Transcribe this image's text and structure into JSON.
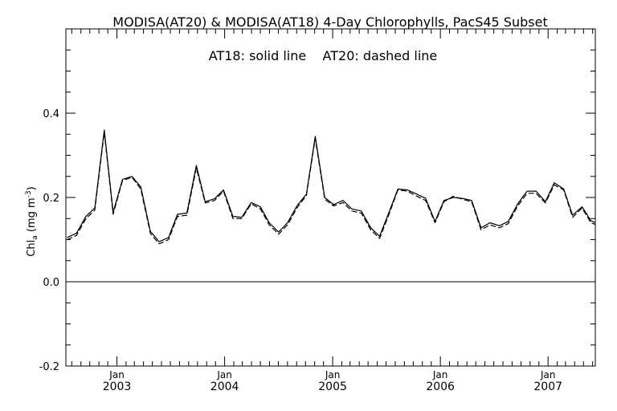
{
  "chart_data": {
    "type": "line",
    "title": "MODISA(AT20) & MODISA(AT18) 4-Day Chlorophylls, PacS45 Subset",
    "annotation": "AT18: solid line    AT20: dashed line",
    "ylabel_main": "Chl",
    "ylabel_sub": "a",
    "ylabel_unit_prefix": " (mg m",
    "ylabel_unit_sup": "-3",
    "ylabel_unit_suffix": ")",
    "xlabel": "",
    "ylim": [
      -0.2,
      0.6
    ],
    "xlim": [
      "2002-07-12",
      "2007-06-10"
    ],
    "y_ticks": [
      {
        "value": -0.2,
        "label": "-0.2"
      },
      {
        "value": 0.0,
        "label": "0.0"
      },
      {
        "value": 0.2,
        "label": "0.2"
      },
      {
        "value": 0.4,
        "label": "0.4"
      }
    ],
    "y_minor_step": 0.05,
    "x_ticks": [
      {
        "date": "2003-01-01",
        "month": "Jan",
        "year": "2003"
      },
      {
        "date": "2004-01-01",
        "month": "Jan",
        "year": "2004"
      },
      {
        "date": "2005-01-01",
        "month": "Jan",
        "year": "2005"
      },
      {
        "date": "2006-01-01",
        "month": "Jan",
        "year": "2006"
      },
      {
        "date": "2007-01-01",
        "month": "Jan",
        "year": "2007"
      }
    ],
    "zero_line": 0.0,
    "x": [
      "2002-07-16",
      "2002-08-17",
      "2002-09-18",
      "2002-10-18",
      "2002-11-19",
      "2002-12-19",
      "2003-01-20",
      "2003-02-21",
      "2003-03-23",
      "2003-04-24",
      "2003-05-24",
      "2003-06-25",
      "2003-07-25",
      "2003-08-26",
      "2003-09-27",
      "2003-10-27",
      "2003-11-28",
      "2003-12-28",
      "2004-01-29",
      "2004-02-28",
      "2004-03-31",
      "2004-05-01",
      "2004-05-31",
      "2004-07-02",
      "2004-08-01",
      "2004-09-02",
      "2004-10-04",
      "2004-11-03",
      "2004-12-05",
      "2005-01-04",
      "2005-02-05",
      "2005-03-07",
      "2005-04-08",
      "2005-05-10",
      "2005-06-09",
      "2005-07-11",
      "2005-08-10",
      "2005-09-11",
      "2005-10-13",
      "2005-11-12",
      "2005-12-14",
      "2006-01-13",
      "2006-02-14",
      "2006-03-16",
      "2006-04-17",
      "2006-05-19",
      "2006-06-18",
      "2006-07-20",
      "2006-08-19",
      "2006-09-20",
      "2006-10-22",
      "2006-11-21",
      "2006-12-23",
      "2007-01-22",
      "2007-02-23",
      "2007-03-25",
      "2007-04-26",
      "2007-05-26",
      "2007-06-10"
    ],
    "series": [
      {
        "name": "AT18",
        "dash": "solid",
        "values": [
          0.105,
          0.115,
          0.155,
          0.175,
          0.36,
          0.165,
          0.243,
          0.25,
          0.225,
          0.12,
          0.095,
          0.105,
          0.16,
          0.163,
          0.276,
          0.19,
          0.197,
          0.218,
          0.155,
          0.153,
          0.188,
          0.178,
          0.14,
          0.118,
          0.14,
          0.18,
          0.208,
          0.345,
          0.2,
          0.183,
          0.193,
          0.173,
          0.168,
          0.128,
          0.108,
          0.165,
          0.22,
          0.218,
          0.208,
          0.198,
          0.143,
          0.193,
          0.2,
          0.198,
          0.193,
          0.128,
          0.14,
          0.133,
          0.143,
          0.185,
          0.215,
          0.215,
          0.19,
          0.235,
          0.22,
          0.158,
          0.178,
          0.145,
          0.14
        ]
      },
      {
        "name": "AT20",
        "dash": "dashed",
        "values": [
          0.1,
          0.11,
          0.15,
          0.17,
          0.355,
          0.16,
          0.24,
          0.248,
          0.22,
          0.115,
          0.09,
          0.1,
          0.155,
          0.158,
          0.27,
          0.187,
          0.193,
          0.215,
          0.15,
          0.15,
          0.185,
          0.173,
          0.135,
          0.113,
          0.135,
          0.175,
          0.205,
          0.34,
          0.196,
          0.18,
          0.188,
          0.168,
          0.163,
          0.123,
          0.103,
          0.16,
          0.218,
          0.215,
          0.203,
          0.193,
          0.14,
          0.19,
          0.203,
          0.196,
          0.19,
          0.123,
          0.135,
          0.128,
          0.138,
          0.18,
          0.21,
          0.21,
          0.187,
          0.23,
          0.218,
          0.153,
          0.175,
          0.14,
          0.136
        ]
      }
    ]
  }
}
